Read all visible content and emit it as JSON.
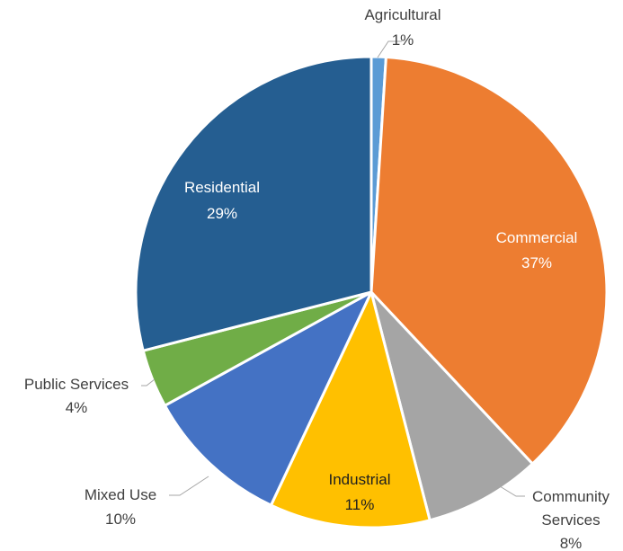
{
  "chart_data": {
    "type": "pie",
    "title": "",
    "categories": [
      "Agricultural",
      "Commercial",
      "Community Services",
      "Industrial",
      "Mixed Use",
      "Public Services",
      "Residential"
    ],
    "values": [
      1,
      37,
      8,
      11,
      10,
      4,
      29
    ],
    "value_labels": [
      "1%",
      "37%",
      "8%",
      "11%",
      "10%",
      "4%",
      "29%"
    ],
    "colors": [
      "#5b9bd5",
      "#ed7d31",
      "#a5a5a5",
      "#ffc000",
      "#4472c4",
      "#70ad47",
      "#255e91"
    ],
    "label_positions": [
      "outside",
      "inside",
      "outside",
      "inside",
      "outside",
      "outside",
      "inside"
    ],
    "legend": "none"
  }
}
